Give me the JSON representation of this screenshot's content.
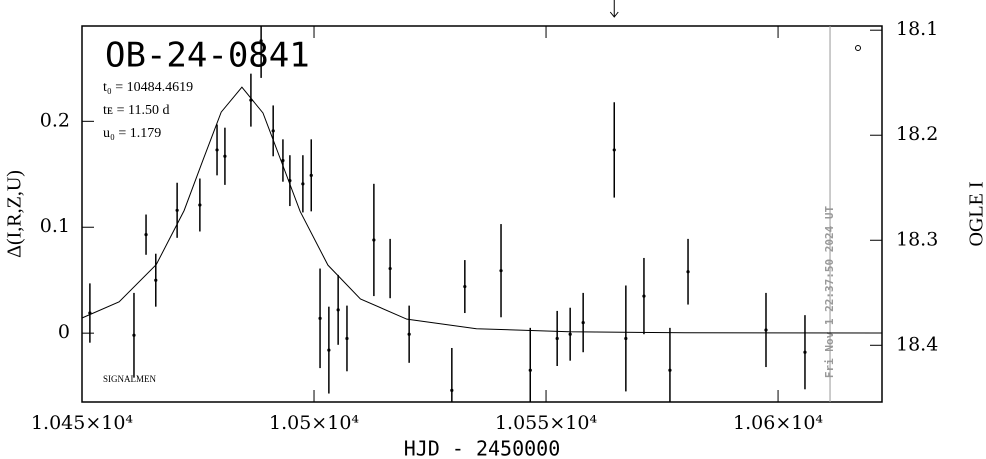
{
  "chart_data": {
    "type": "errorbar",
    "title": "OB-24-0841",
    "annotations": [
      "t₀ = 10484.4619",
      "tᴇ = 11.50 d",
      "u₀ = 1.179"
    ],
    "credit": "SIGNALMEN",
    "timestamp": "Fri Nov  1 22:37:50 2024 UT",
    "xlabel": "HJD - 2450000",
    "ylabel": "Δ(I,R,Z,U)",
    "y2label": "OGLE I",
    "xlim": [
      10450,
      10622.4
    ],
    "ylim": [
      -0.065,
      0.29
    ],
    "y2lim": [
      18.454,
      18.096
    ],
    "xticks": [
      {
        "value": 10450,
        "label": "1.045×10⁴"
      },
      {
        "value": 10500,
        "label": "1.05×10⁴"
      },
      {
        "value": 10550,
        "label": "1.055×10⁴"
      },
      {
        "value": 10600,
        "label": "1.06×10⁴"
      }
    ],
    "yticks": [
      0,
      0.1,
      0.2
    ],
    "y2ticks": [
      18.1,
      18.2,
      18.3,
      18.4
    ],
    "vline_x": 10611.2,
    "arrow_x": 10564.7,
    "color": "#000000",
    "data": {
      "x": [
        10451.7,
        10461.2,
        10463.8,
        10465.9,
        10470.5,
        10475.4,
        10479.1,
        10480.8,
        10486.4,
        10488.6,
        10491.2,
        10493.3,
        10494.8,
        10497.6,
        10499.4,
        10501.3,
        10503.2,
        10505.2,
        10507.1,
        10512.9,
        10516.4,
        10520.5,
        10529.7,
        10532.5,
        10540.3,
        10546.6,
        10552.4,
        10555.2,
        10558.0,
        10564.7,
        10567.2,
        10571.1,
        10576.7,
        10580.6,
        10597.4,
        10605.8
      ],
      "values": [
        0.019,
        -0.002,
        0.093,
        0.05,
        0.116,
        0.121,
        0.173,
        0.167,
        0.22,
        0.276,
        0.191,
        0.163,
        0.144,
        0.141,
        0.149,
        0.014,
        -0.016,
        0.022,
        -0.005,
        0.088,
        0.061,
        -0.001,
        -0.054,
        0.044,
        0.059,
        -0.035,
        -0.005,
        -0.001,
        0.01,
        0.173,
        -0.005,
        0.035,
        -0.035,
        0.058,
        0.003,
        -0.018
      ],
      "errors": [
        0.028,
        0.04,
        0.019,
        0.025,
        0.026,
        0.025,
        0.024,
        0.027,
        0.025,
        0.035,
        0.024,
        0.02,
        0.024,
        0.027,
        0.034,
        0.047,
        0.041,
        0.033,
        0.031,
        0.053,
        0.028,
        0.027,
        0.04,
        0.025,
        0.044,
        0.04,
        0.026,
        0.025,
        0.028,
        0.045,
        0.05,
        0.036,
        0.04,
        0.031,
        0.035,
        0.035
      ]
    },
    "model": {
      "x": [
        10450,
        10458,
        10466,
        10472,
        10476,
        10480,
        10484.46,
        10489,
        10493,
        10497,
        10503,
        10510,
        10520,
        10535,
        10555,
        10580,
        10622.4
      ],
      "values": [
        0.0143,
        0.0296,
        0.0647,
        0.1157,
        0.1626,
        0.2087,
        0.2322,
        0.2079,
        0.1616,
        0.115,
        0.0642,
        0.0323,
        0.0132,
        0.0042,
        0.0013,
        0.0004,
        0.0001
      ]
    }
  }
}
